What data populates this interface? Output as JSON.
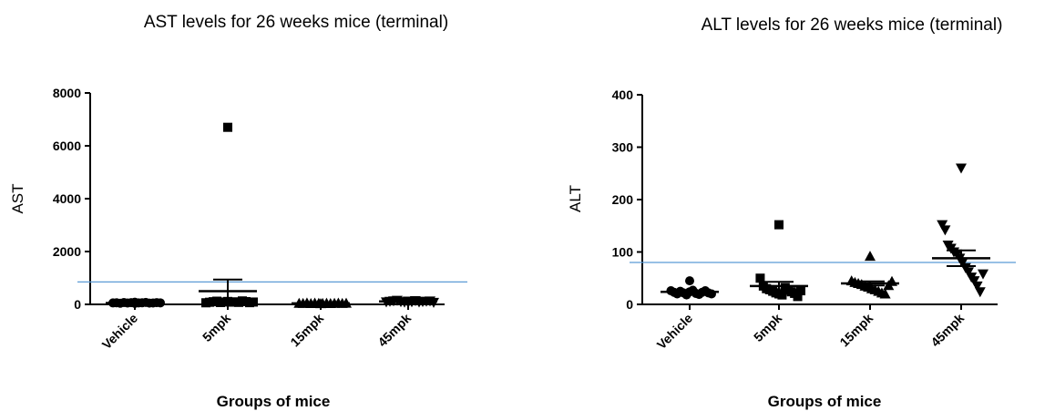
{
  "chart_data": [
    {
      "type": "scatter",
      "title": "AST levels for 26 weeks mice (terminal)",
      "xlabel": "Groups of mice",
      "ylabel": "AST",
      "categories": [
        "Vehicle",
        "5mpk",
        "15mpk",
        "45mpk"
      ],
      "ylim": [
        0,
        8000
      ],
      "yticks": [
        0,
        2000,
        4000,
        6000,
        8000
      ],
      "reference_line": 850,
      "grid": false,
      "series": [
        {
          "marker": "circle",
          "values": [
            40,
            55,
            60,
            45,
            70,
            50,
            65,
            80,
            55,
            60,
            75,
            48,
            52,
            66,
            58
          ]
        },
        {
          "marker": "square",
          "values": [
            6700,
            60,
            80,
            100,
            120,
            70,
            90,
            110,
            85,
            95,
            75,
            130,
            105,
            65,
            88
          ]
        },
        {
          "marker": "triangle-up",
          "values": [
            30,
            45,
            40,
            55,
            35,
            50,
            42,
            38,
            48,
            36,
            44,
            52,
            40,
            46
          ]
        },
        {
          "marker": "triangle-down",
          "values": [
            70,
            90,
            110,
            130,
            150,
            100,
            80,
            120,
            95,
            140,
            85,
            105,
            115,
            125,
            75
          ]
        }
      ],
      "summary": [
        {
          "mean": 50,
          "sem": 5
        },
        {
          "mean": 500,
          "sem": 440
        },
        {
          "mean": 40,
          "sem": 4
        },
        {
          "mean": 110,
          "sem": 10
        }
      ]
    },
    {
      "type": "scatter",
      "title": "ALT levels for 26 weeks mice (terminal)",
      "xlabel": "Groups of mice",
      "ylabel": "ALT",
      "categories": [
        "Vehicle",
        "5mpk",
        "15mpk",
        "45mpk"
      ],
      "ylim": [
        0,
        400
      ],
      "yticks": [
        0,
        100,
        200,
        300,
        400
      ],
      "reference_line": 80,
      "grid": false,
      "series": [
        {
          "marker": "circle",
          "values": [
            45,
            26,
            23,
            20,
            25,
            22,
            18,
            24,
            27,
            21,
            19,
            23,
            26,
            22,
            20
          ]
        },
        {
          "marker": "square",
          "values": [
            152,
            50,
            35,
            30,
            28,
            25,
            22,
            20,
            18,
            32,
            27,
            24,
            21,
            15,
            26
          ]
        },
        {
          "marker": "triangle-up",
          "values": [
            92,
            45,
            42,
            40,
            38,
            35,
            33,
            30,
            28,
            25,
            22,
            20,
            36,
            44
          ]
        },
        {
          "marker": "triangle-down",
          "values": [
            260,
            152,
            142,
            113,
            107,
            100,
            96,
            88,
            80,
            70,
            62,
            52,
            45,
            35,
            24,
            58
          ]
        }
      ],
      "summary": [
        {
          "mean": 24,
          "sem": 2
        },
        {
          "mean": 35,
          "sem": 8
        },
        {
          "mean": 40,
          "sem": 4
        },
        {
          "mean": 88,
          "sem": 15
        }
      ]
    }
  ]
}
